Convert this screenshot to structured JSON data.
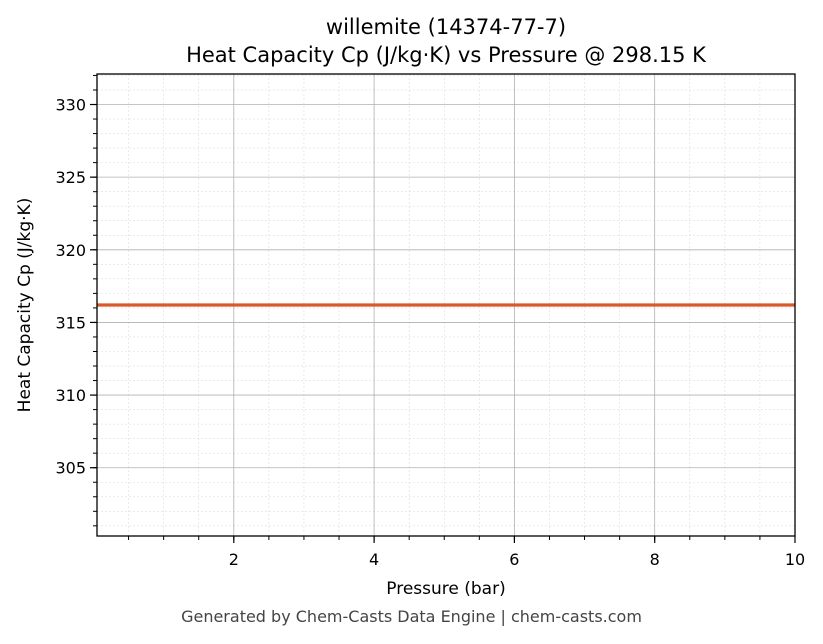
{
  "chart_data": {
    "type": "line",
    "title_line1": "willemite (14374-77-7)",
    "title_line2": "Heat Capacity Cp (J/kg·K) vs Pressure @ 298.15 K",
    "xlabel": "Pressure (bar)",
    "ylabel": "Heat Capacity Cp (J/kg·K)",
    "xlim": [
      0.05,
      10
    ],
    "ylim": [
      300.3,
      332.1
    ],
    "x_major_ticks": [
      2,
      4,
      6,
      8,
      10
    ],
    "y_major_ticks": [
      305,
      310,
      315,
      320,
      325,
      330
    ],
    "x_minor_step": 0.5,
    "y_minor_step": 1,
    "grid": true,
    "line_color": "#d9592b",
    "series": [
      {
        "x": [
          0.05,
          10
        ],
        "y": [
          316.2,
          316.2
        ]
      }
    ]
  },
  "footer": "Generated by Chem-Casts Data Engine | chem-casts.com"
}
